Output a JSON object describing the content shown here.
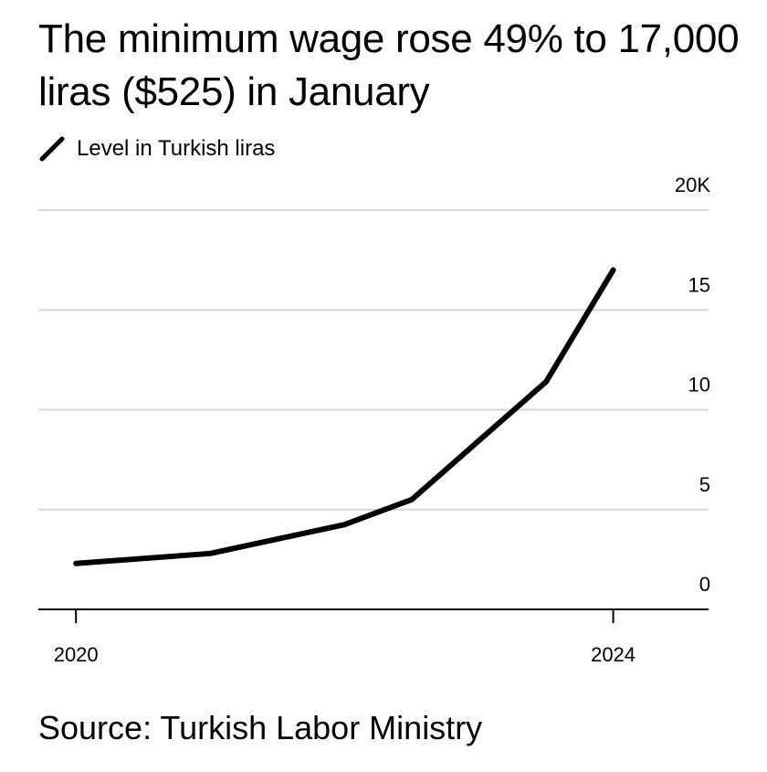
{
  "chart_data": {
    "type": "line",
    "title": "The minimum wage rose 49% to 17,000 liras ($525) in January",
    "x": [
      2020,
      2021,
      2022,
      2022.5,
      2023.5,
      2024
    ],
    "series": [
      {
        "name": "Level in Turkish liras",
        "color": "#000000",
        "values": [
          2300,
          2800,
          4250,
          5500,
          11400,
          17000
        ]
      }
    ],
    "xlim": [
      2019.72,
      2024.71
    ],
    "xticks": [
      2020,
      2024
    ],
    "ylim": [
      0,
      20000
    ],
    "yticks": [
      0,
      {
        "value": 5000,
        "label": "5"
      },
      {
        "value": 10000,
        "label": "10"
      },
      {
        "value": 15000,
        "label": "15"
      },
      {
        "value": 20000,
        "label": "20K"
      }
    ],
    "grid": true,
    "source": "Source: Turkish Labor Ministry"
  }
}
